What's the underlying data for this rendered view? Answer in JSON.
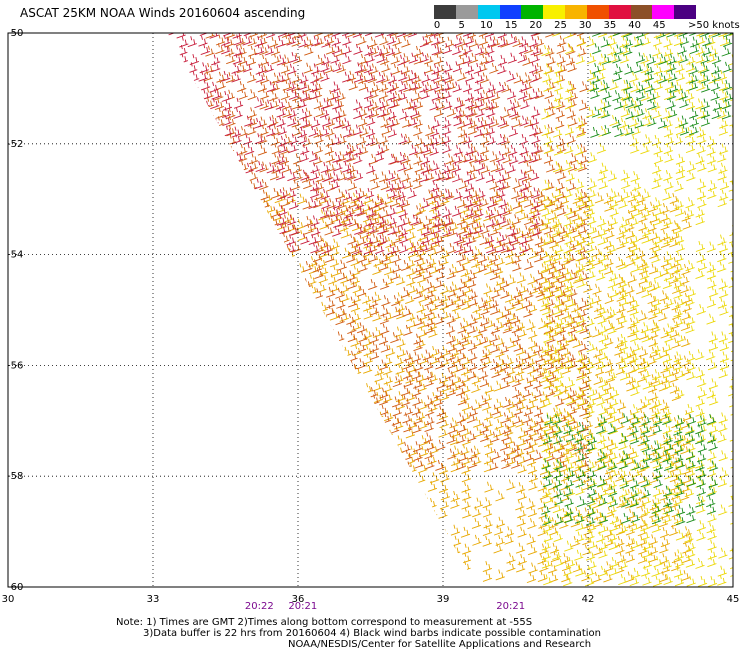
{
  "chart_data": {
    "type": "scatter",
    "title": "ASCAT 25KM NOAA Winds 20160604 ascending",
    "xlim": [
      30,
      45
    ],
    "ylim": [
      -60,
      -50
    ],
    "x_ticks": [
      "30",
      "33",
      "36",
      "39",
      "42",
      "45"
    ],
    "y_ticks": [
      "-50",
      "-52",
      "-54",
      "-56",
      "-58",
      "-60"
    ],
    "grid": true,
    "legend": {
      "position": "top-right",
      "labels": [
        "0",
        "5",
        "10",
        "15",
        "20",
        "25",
        "30",
        "35",
        "40",
        "45",
        ">50 knots"
      ],
      "colors": [
        "#3c3c3c",
        "#9a9a9a",
        "#00c8f0",
        "#1040ff",
        "#00b400",
        "#f8f000",
        "#f8b400",
        "#f05000",
        "#e01040",
        "#8c5028",
        "#ff00ff",
        "#4b0082"
      ]
    },
    "series": [
      {
        "speed_knots": "25-30",
        "color": "#e8a800",
        "region": {
          "lon": [
            35,
            44
          ],
          "lat": [
            -60,
            -53
          ]
        }
      },
      {
        "speed_knots": "30-35",
        "color": "#d05a10",
        "region": {
          "lon": [
            34,
            42
          ],
          "lat": [
            -58,
            -50
          ]
        }
      },
      {
        "speed_knots": "35-40",
        "color": "#c81e3c",
        "region": {
          "lon": [
            33,
            41
          ],
          "lat": [
            -54,
            -50
          ]
        }
      },
      {
        "speed_knots": "20-25",
        "color": "#ecd808",
        "region": {
          "lon": [
            41,
            45
          ],
          "lat": [
            -60,
            -50
          ]
        }
      },
      {
        "speed_knots": "15-20",
        "color": "#1a8c1a",
        "region": {
          "lon": [
            41,
            44.5
          ],
          "lat": [
            -59,
            -57
          ]
        }
      },
      {
        "speed_knots": "15-20",
        "color": "#1a8c1a",
        "region": {
          "lon": [
            42,
            45
          ],
          "lat": [
            -52,
            -50
          ]
        }
      }
    ],
    "time_labels": [
      {
        "lon": 35.2,
        "text": "20:22"
      },
      {
        "lon": 36.1,
        "text": "20:21"
      },
      {
        "lon": 40.4,
        "text": "20:21"
      }
    ]
  },
  "notes": {
    "line1": "Note: 1) Times are GMT 2)Times along bottom correspond to measurement at -55S",
    "line2": "3)Data buffer is 22 hrs from 20160604 4) Black wind barbs indicate possible contamination",
    "line3": "NOAA/NESDIS/Center for Satellite Applications and Research"
  }
}
